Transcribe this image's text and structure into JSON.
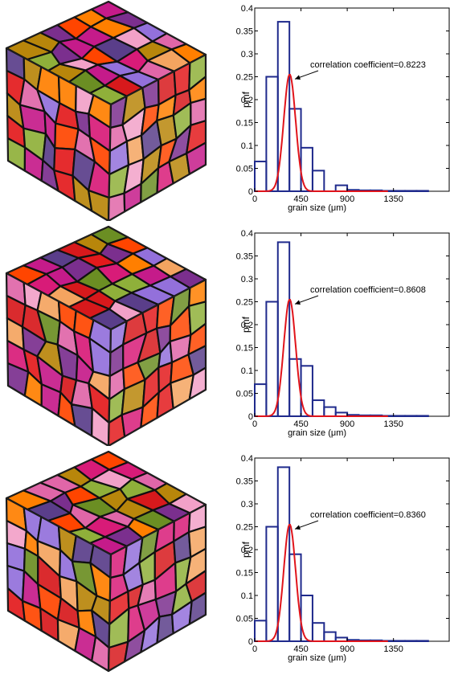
{
  "chart_data": [
    {
      "type": "bar",
      "ylabel": "pmf",
      "xlabel": "grain size (μm)",
      "xticks": [
        "0",
        "450",
        "900",
        "1350"
      ],
      "yticks": [
        "0",
        "0.05",
        "0.1",
        "0.15",
        "0.2",
        "0.25",
        "0.3",
        "0.35",
        "0.4"
      ],
      "xlim": [
        0,
        1900
      ],
      "ylim": [
        0,
        0.4
      ],
      "bin_width": 112.5,
      "bins_start": 0,
      "histogram_values": [
        0.065,
        0.25,
        0.37,
        0.18,
        0.095,
        0.045,
        0.0,
        0.013,
        0.003,
        0.002,
        0.002,
        0.001,
        0.001,
        0.001,
        0.001
      ],
      "fit_curve": {
        "mean": 340,
        "sigma": 58,
        "peak": 0.255
      },
      "annotation": "correlation coefficient=0.8223",
      "hist_color": "#1f2a8c",
      "curve_color": "#e0141b"
    },
    {
      "type": "bar",
      "ylabel": "pmf",
      "xlabel": "grain size (μm)",
      "xticks": [
        "0",
        "450",
        "900",
        "1350"
      ],
      "yticks": [
        "0",
        "0.05",
        "0.1",
        "0.15",
        "0.2",
        "0.25",
        "0.3",
        "0.35",
        "0.4"
      ],
      "xlim": [
        0,
        1900
      ],
      "ylim": [
        0,
        0.4
      ],
      "bin_width": 112.5,
      "bins_start": 0,
      "histogram_values": [
        0.07,
        0.25,
        0.38,
        0.125,
        0.11,
        0.035,
        0.02,
        0.008,
        0.003,
        0.002,
        0.002,
        0.001,
        0.001,
        0.001,
        0.001
      ],
      "fit_curve": {
        "mean": 340,
        "sigma": 58,
        "peak": 0.255
      },
      "annotation": "correlation coefficient=0.8608",
      "hist_color": "#1f2a8c",
      "curve_color": "#e0141b"
    },
    {
      "type": "bar",
      "ylabel": "pmf",
      "xlabel": "grain size (μm)",
      "xticks": [
        "0",
        "450",
        "900",
        "1350"
      ],
      "yticks": [
        "0",
        "0.05",
        "0.1",
        "0.15",
        "0.2",
        "0.25",
        "0.3",
        "0.35",
        "0.4"
      ],
      "xlim": [
        0,
        1900
      ],
      "ylim": [
        0,
        0.4
      ],
      "bin_width": 112.5,
      "bins_start": 0,
      "histogram_values": [
        0.045,
        0.25,
        0.38,
        0.19,
        0.1,
        0.04,
        0.02,
        0.008,
        0.003,
        0.002,
        0.002,
        0.001,
        0.001,
        0.001,
        0.001
      ],
      "fit_curve": {
        "mean": 340,
        "sigma": 58,
        "peak": 0.255
      },
      "annotation": "correlation coefficient=0.8360",
      "hist_color": "#1f2a8c",
      "curve_color": "#e0141b"
    }
  ],
  "cube_colors": [
    "#e31a1c",
    "#d7191c",
    "#f2a1c8",
    "#7b2f8e",
    "#ff7f00",
    "#b8860b",
    "#8fb03a",
    "#d81b78",
    "#5a3e8a",
    "#f4a460",
    "#c51b8a",
    "#6b8e23",
    "#ff4500",
    "#9370db",
    "#e066a8"
  ]
}
